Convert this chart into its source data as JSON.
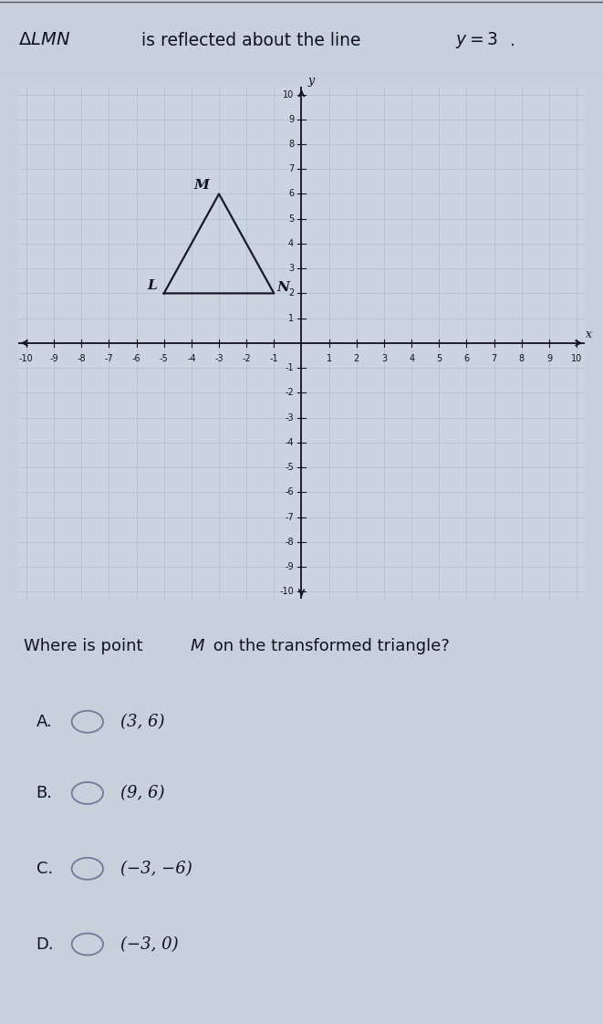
{
  "title_plain": " is reflected about the line ",
  "title_delta_lmn": "ΔLMN",
  "title_y_eq": "y = 3",
  "question_pre": "Where is point ",
  "question_M": "M",
  "question_post": " on the transformed triangle?",
  "triangle_L": [
    -5,
    2
  ],
  "triangle_M": [
    -3,
    6
  ],
  "triangle_N": [
    -1,
    2
  ],
  "triangle_color": "#1a1a2e",
  "triangle_linewidth": 1.6,
  "grid_color": "#b0bcd0",
  "background_color": "#ccd4e0",
  "outer_bg": "#c8d0dc",
  "axis_range": [
    -10,
    10
  ],
  "choices": [
    {
      "label": "A.",
      "text": "(3, 6)"
    },
    {
      "label": "B.",
      "text": "(9, 6)"
    },
    {
      "label": "C.",
      "text": "(−3, −6)"
    },
    {
      "label": "D.",
      "text": "(−3, 0)"
    }
  ],
  "label_offsets": {
    "L": [
      -0.6,
      0.15
    ],
    "M": [
      -0.9,
      0.2
    ],
    "N": [
      0.1,
      0.1
    ]
  },
  "font_color": "#111122",
  "tick_fontsize": 7,
  "label_fontsize": 11,
  "title_fontsize": 14,
  "question_fontsize": 13,
  "choice_fontsize": 13
}
